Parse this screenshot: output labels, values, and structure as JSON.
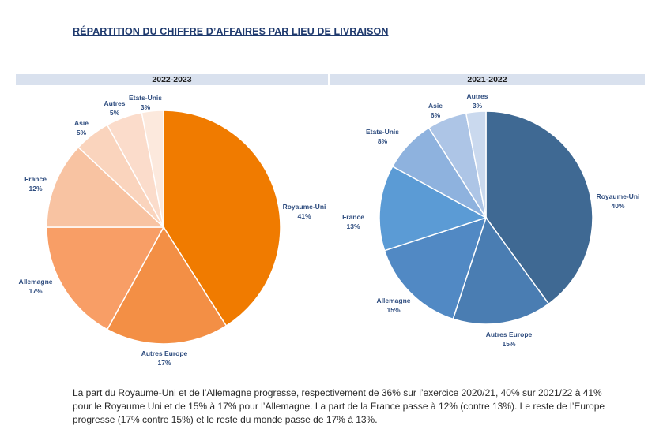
{
  "header": {
    "title": "RÉPARTITION DU CHIFFRE D’AFFAIRES PAR LIEU DE LIVRAISON"
  },
  "chart_data": [
    {
      "type": "pie",
      "title": "2022-2023",
      "slices": [
        {
          "label": "Royaume-Uni",
          "value": 41,
          "display": "41%",
          "color": "#f07b00"
        },
        {
          "label": "Autres Europe",
          "value": 17,
          "display": "17%",
          "color": "#f38f45"
        },
        {
          "label": "Allemagne",
          "value": 17,
          "display": "17%",
          "color": "#f89e66"
        },
        {
          "label": "France",
          "value": 12,
          "display": "12%",
          "color": "#f8c3a2"
        },
        {
          "label": "Asie",
          "value": 5,
          "display": "5%",
          "color": "#fad4bd"
        },
        {
          "label": "Autres",
          "value": 5,
          "display": "5%",
          "color": "#fbdccb"
        },
        {
          "label": "Etats-Unis",
          "value": 3,
          "display": "3%",
          "color": "#fce9dd"
        }
      ]
    },
    {
      "type": "pie",
      "title": "2021-2022",
      "slices": [
        {
          "label": "Royaume-Uni",
          "value": 40,
          "display": "40%",
          "color": "#3f6993"
        },
        {
          "label": "Autres Europe",
          "value": 15,
          "display": "15%",
          "color": "#4a7db2"
        },
        {
          "label": "Allemagne",
          "value": 15,
          "display": "15%",
          "color": "#5189c4"
        },
        {
          "label": "France",
          "value": 13,
          "display": "13%",
          "color": "#5b9bd5"
        },
        {
          "label": "Etats-Unis",
          "value": 8,
          "display": "8%",
          "color": "#8eb2de"
        },
        {
          "label": "Asie",
          "value": 6,
          "display": "6%",
          "color": "#adc5e6"
        },
        {
          "label": "Autres",
          "value": 3,
          "display": "3%",
          "color": "#cad9ee"
        }
      ]
    }
  ],
  "footer": {
    "text": "La part du Royaume-Uni et de l’Allemagne progresse, respectivement de 36% sur l’exercice 2020/21, 40% sur 2021/22 à 41% pour le Royaume Uni et de 15% à 17% pour l’Allemagne. La part de la France passe à 12% (contre 13%). Le reste de l’Europe progresse (17% contre 15%) et le reste du monde passe de 17% à 13%."
  }
}
